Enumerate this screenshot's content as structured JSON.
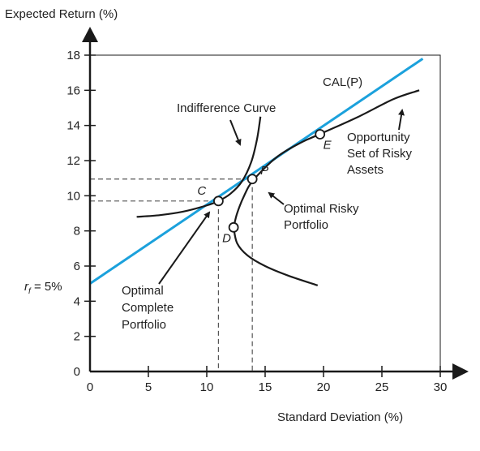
{
  "chart_data": {
    "type": "line",
    "ylabel": "Expected Return (%)",
    "xlabel": "Standard Deviation (%)",
    "xlim": [
      0,
      30
    ],
    "ylim": [
      0,
      18
    ],
    "x_ticks": [
      0,
      5,
      10,
      15,
      20,
      25,
      30
    ],
    "y_ticks": [
      0,
      2,
      4,
      6,
      8,
      10,
      12,
      14,
      16,
      18
    ],
    "x_tick_labels": [
      "0",
      "5",
      "10",
      "15",
      "20",
      "25",
      "30"
    ],
    "y_tick_labels": [
      "0",
      "2",
      "4",
      "6",
      "8",
      "10",
      "12",
      "14",
      "16",
      "18"
    ],
    "rf_label": "r",
    "rf_sub": "f",
    "rf_value_text": " = 5%",
    "rf_value": 5,
    "grid": false,
    "colors": {
      "cal_line": "#1BA1DC",
      "curves": "#1a1a1a"
    },
    "series": [
      {
        "name": "CAL(P)",
        "style": "straight",
        "points": [
          [
            0,
            5
          ],
          [
            28.5,
            17.8
          ]
        ]
      },
      {
        "name": "Opportunity Set of Risky Assets",
        "style": "smooth",
        "points": [
          [
            12.3,
            8.2
          ],
          [
            12.6,
            9.0
          ],
          [
            13.2,
            10.0
          ],
          [
            14.0,
            10.9
          ],
          [
            16.0,
            12.2
          ],
          [
            18.0,
            13.0
          ],
          [
            20.0,
            13.6
          ],
          [
            23.0,
            14.5
          ],
          [
            26.0,
            15.5
          ],
          [
            28.2,
            16.0
          ]
        ]
      },
      {
        "name": "",
        "style": "smooth",
        "points": [
          [
            12.3,
            8.2
          ],
          [
            12.6,
            7.3
          ],
          [
            13.5,
            6.6
          ],
          [
            15.0,
            6.0
          ],
          [
            17.0,
            5.45
          ],
          [
            19.5,
            4.9
          ]
        ]
      },
      {
        "name": "Indifference Curve",
        "style": "smooth",
        "points": [
          [
            4.0,
            8.8
          ],
          [
            6.0,
            8.9
          ],
          [
            8.0,
            9.1
          ],
          [
            10.0,
            9.45
          ],
          [
            11.0,
            9.7
          ],
          [
            12.0,
            10.1
          ],
          [
            13.0,
            10.8
          ],
          [
            13.8,
            11.9
          ],
          [
            14.3,
            13.2
          ],
          [
            14.6,
            14.5
          ]
        ]
      }
    ],
    "points": [
      {
        "label": "C",
        "x": 11.0,
        "y": 9.7
      },
      {
        "label": "P",
        "x": 13.9,
        "y": 10.95
      },
      {
        "label": "D",
        "x": 12.3,
        "y": 8.2
      },
      {
        "label": "E",
        "x": 19.7,
        "y": 13.5
      }
    ],
    "annotations": {
      "cal": "CAL(P)",
      "indifference": "Indifference Curve",
      "opportunity": [
        "Opportunity",
        "Set of Risky",
        "Assets"
      ],
      "optimal_risky": [
        "Optimal Risky",
        "Portfolio"
      ],
      "optimal_complete": [
        "Optimal",
        "Complete",
        "Portfolio"
      ]
    }
  }
}
